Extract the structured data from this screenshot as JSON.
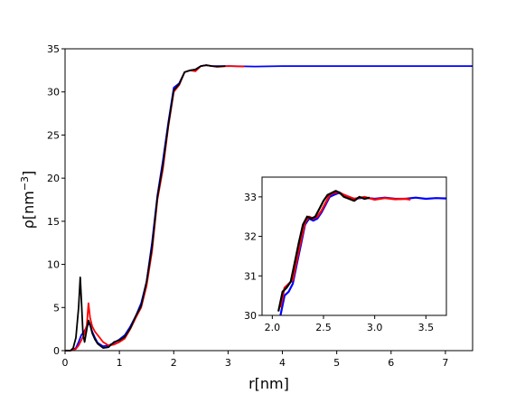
{
  "chart_data": [
    {
      "type": "line",
      "xlabel": "r[nm]",
      "ylabel_main": "ρ[nm",
      "ylabel_sup": "−3",
      "ylabel_close": "]",
      "xlim": [
        0,
        7.5
      ],
      "ylim": [
        0,
        35
      ],
      "xticks": [
        "0",
        "1",
        "2",
        "3",
        "4",
        "5",
        "6",
        "7"
      ],
      "yticks": [
        "0",
        "5",
        "10",
        "15",
        "20",
        "25",
        "30",
        "35"
      ],
      "grid": false,
      "legend": "none",
      "series": [
        {
          "color": "#0000ff",
          "x": [
            0.0,
            0.1,
            0.2,
            0.25,
            0.3,
            0.35,
            0.4,
            0.45,
            0.5,
            0.55,
            0.6,
            0.7,
            0.8,
            0.9,
            1.0,
            1.1,
            1.2,
            1.3,
            1.4,
            1.5,
            1.6,
            1.7,
            1.8,
            1.9,
            2.0,
            2.1,
            2.2,
            2.3,
            2.4,
            2.5,
            2.6,
            2.7,
            2.8,
            3.0,
            3.5,
            4.0,
            5.0,
            6.0,
            7.0,
            7.5
          ],
          "y": [
            0.0,
            0.0,
            0.3,
            1.0,
            1.8,
            2.2,
            2.8,
            3.2,
            2.2,
            1.5,
            0.9,
            0.5,
            0.6,
            0.9,
            1.3,
            1.8,
            2.8,
            4.0,
            5.5,
            8.0,
            12.5,
            18.0,
            22.0,
            26.5,
            30.5,
            31.0,
            32.3,
            32.5,
            32.6,
            33.0,
            33.1,
            33.0,
            33.0,
            33.0,
            32.95,
            33.0,
            33.0,
            33.0,
            33.0,
            33.0
          ]
        },
        {
          "color": "#ff0000",
          "x": [
            0.0,
            0.1,
            0.2,
            0.25,
            0.3,
            0.35,
            0.4,
            0.43,
            0.46,
            0.5,
            0.55,
            0.6,
            0.7,
            0.8,
            0.9,
            1.0,
            1.1,
            1.2,
            1.3,
            1.4,
            1.5,
            1.6,
            1.7,
            1.8,
            1.9,
            2.0,
            2.1,
            2.2,
            2.3,
            2.4,
            2.5,
            2.6,
            2.7,
            2.8,
            3.0,
            3.3
          ],
          "y": [
            0.0,
            0.0,
            0.2,
            0.6,
            1.2,
            1.8,
            3.0,
            5.5,
            3.8,
            2.8,
            2.2,
            1.8,
            1.0,
            0.6,
            0.7,
            1.0,
            1.4,
            2.5,
            3.8,
            5.0,
            7.5,
            11.5,
            17.5,
            21.0,
            26.0,
            30.0,
            30.8,
            32.3,
            32.5,
            32.4,
            33.0,
            33.1,
            33.0,
            32.9,
            33.0,
            32.95
          ]
        },
        {
          "color": "#000000",
          "x": [
            0.0,
            0.1,
            0.15,
            0.2,
            0.25,
            0.28,
            0.3,
            0.33,
            0.36,
            0.4,
            0.43,
            0.46,
            0.5,
            0.55,
            0.6,
            0.7,
            0.8,
            0.9,
            1.0,
            1.1,
            1.2,
            1.3,
            1.4,
            1.5,
            1.6,
            1.7,
            1.8,
            1.9,
            2.0,
            2.1,
            2.2,
            2.3,
            2.4,
            2.5,
            2.6,
            2.7,
            2.8,
            2.95
          ],
          "y": [
            0.0,
            0.0,
            0.3,
            1.5,
            5.0,
            8.5,
            6.0,
            2.0,
            1.0,
            2.5,
            3.5,
            3.0,
            2.0,
            1.3,
            0.8,
            0.3,
            0.4,
            1.0,
            1.2,
            1.6,
            2.6,
            4.0,
            5.2,
            8.0,
            12.0,
            17.8,
            21.5,
            26.2,
            30.2,
            30.9,
            32.3,
            32.5,
            32.6,
            33.0,
            33.1,
            33.0,
            32.95,
            33.0
          ]
        }
      ]
    },
    {
      "type": "line",
      "xlim": [
        1.9,
        3.7
      ],
      "ylim": [
        30,
        33.5
      ],
      "xticks": [
        "2.0",
        "2.5",
        "3.0",
        "3.5"
      ],
      "yticks": [
        "30",
        "31",
        "32",
        "33"
      ],
      "grid": false,
      "legend": "none",
      "series": [
        {
          "color": "#0000ff",
          "x": [
            2.08,
            2.12,
            2.16,
            2.2,
            2.24,
            2.28,
            2.32,
            2.36,
            2.4,
            2.44,
            2.48,
            2.52,
            2.56,
            2.6,
            2.65,
            2.7,
            2.75,
            2.8,
            2.9,
            3.0,
            3.1,
            3.2,
            3.3,
            3.4,
            3.5,
            3.6,
            3.7
          ],
          "y": [
            30.0,
            30.5,
            30.6,
            30.8,
            31.3,
            31.8,
            32.3,
            32.45,
            32.4,
            32.45,
            32.6,
            32.8,
            33.0,
            33.05,
            33.1,
            33.05,
            33.0,
            32.95,
            32.98,
            32.95,
            32.98,
            32.95,
            32.95,
            32.98,
            32.95,
            32.97,
            32.96
          ]
        },
        {
          "color": "#ff0000",
          "x": [
            2.08,
            2.12,
            2.16,
            2.2,
            2.24,
            2.28,
            2.32,
            2.36,
            2.4,
            2.44,
            2.48,
            2.52,
            2.56,
            2.6,
            2.65,
            2.7,
            2.75,
            2.8,
            2.9,
            3.0,
            3.1,
            3.2,
            3.3,
            3.35
          ],
          "y": [
            30.2,
            30.7,
            30.8,
            30.9,
            31.4,
            31.9,
            32.35,
            32.5,
            32.45,
            32.5,
            32.65,
            32.85,
            33.05,
            33.1,
            33.12,
            33.05,
            33.0,
            32.95,
            33.0,
            32.93,
            32.97,
            32.94,
            32.95,
            32.93
          ]
        },
        {
          "color": "#000000",
          "x": [
            2.06,
            2.1,
            2.14,
            2.18,
            2.22,
            2.26,
            2.3,
            2.34,
            2.38,
            2.42,
            2.46,
            2.5,
            2.54,
            2.58,
            2.62,
            2.66,
            2.7,
            2.75,
            2.8,
            2.85,
            2.9,
            2.95
          ],
          "y": [
            30.1,
            30.6,
            30.7,
            30.85,
            31.35,
            31.85,
            32.3,
            32.5,
            32.45,
            32.5,
            32.7,
            32.9,
            33.05,
            33.1,
            33.15,
            33.1,
            33.0,
            32.95,
            32.9,
            33.0,
            32.95,
            32.98
          ]
        }
      ]
    }
  ]
}
